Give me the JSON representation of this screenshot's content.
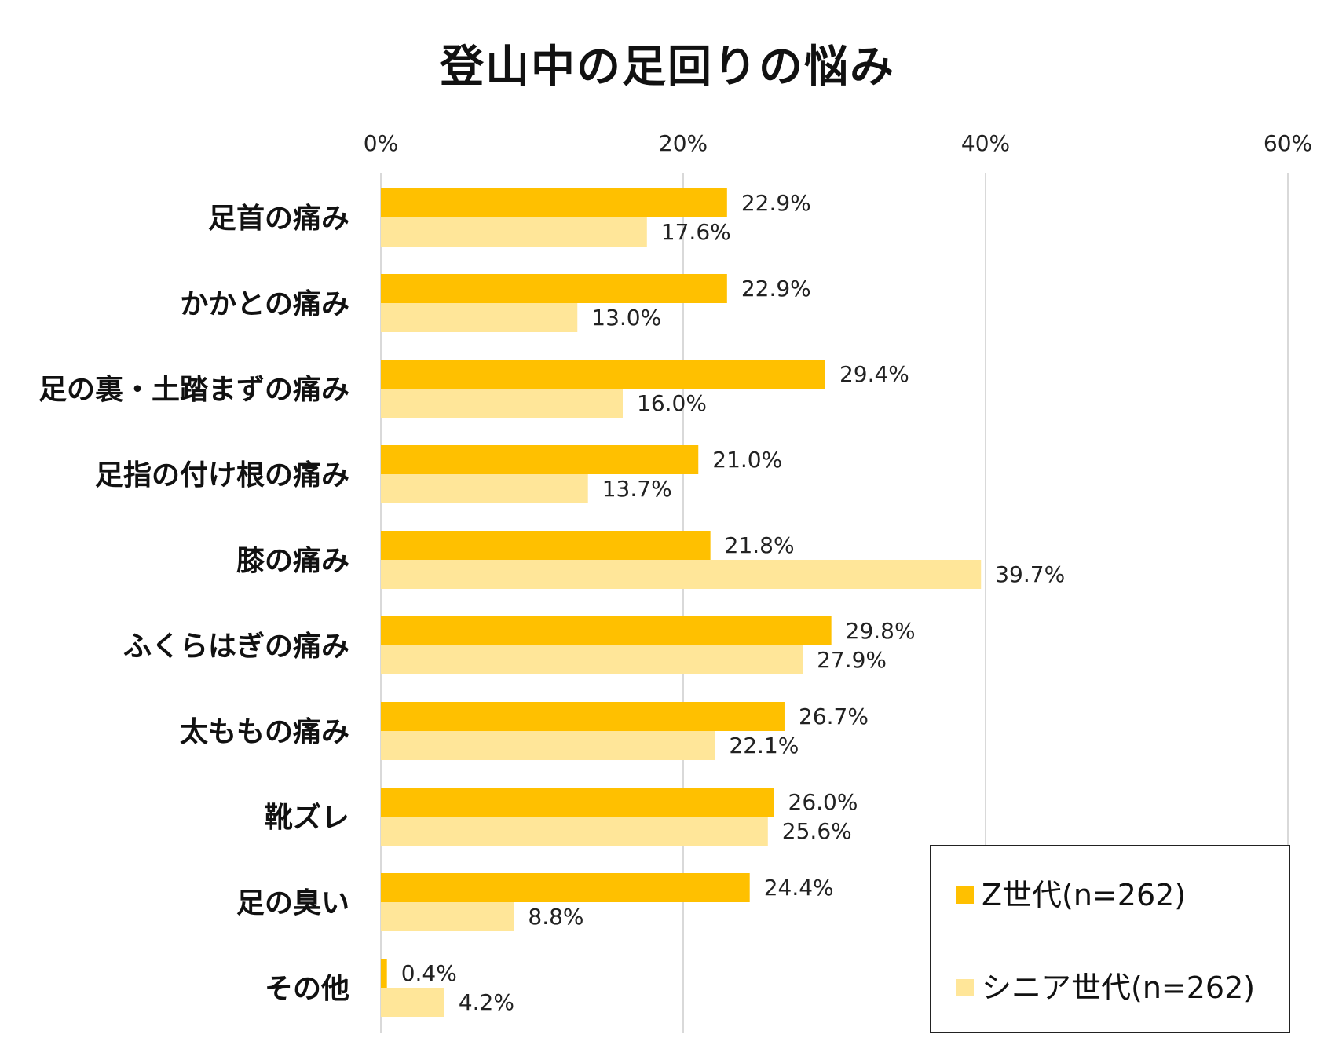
{
  "chart_data": {
    "type": "bar",
    "orientation": "horizontal",
    "title": "登山中の足回りの悩み",
    "categories": [
      "足首の痛み",
      "かかとの痛み",
      "足の裏・土踏まずの痛み",
      "足指の付け根の痛み",
      "膝の痛み",
      "ふくらはぎの痛み",
      "太ももの痛み",
      "靴ズレ",
      "足の臭い",
      "その他"
    ],
    "series": [
      {
        "name": "Z世代(n=262)",
        "color": "#FFC000",
        "values": [
          22.9,
          22.9,
          29.4,
          21.0,
          21.8,
          29.8,
          26.7,
          26.0,
          24.4,
          0.4
        ],
        "labels": [
          "22.9%",
          "22.9%",
          "29.4%",
          "21.0%",
          "21.8%",
          "29.8%",
          "26.7%",
          "26.0%",
          "24.4%",
          "0.4%"
        ]
      },
      {
        "name": "シニア世代(n=262)",
        "color": "#FFE699",
        "values": [
          17.6,
          13.0,
          16.0,
          13.7,
          39.7,
          27.9,
          22.1,
          25.6,
          8.8,
          4.2
        ],
        "labels": [
          "17.6%",
          "13.0%",
          "16.0%",
          "13.7%",
          "39.7%",
          "27.9%",
          "22.1%",
          "25.6%",
          "8.8%",
          "4.2%"
        ]
      }
    ],
    "xlim": [
      0,
      60
    ],
    "ticks": [
      0,
      20,
      40,
      60
    ],
    "tick_labels": [
      "0%",
      "20%",
      "40%",
      "60%"
    ],
    "grid": true,
    "legend_position": "bottom-right",
    "gridline_color": "#d9d9d9"
  }
}
